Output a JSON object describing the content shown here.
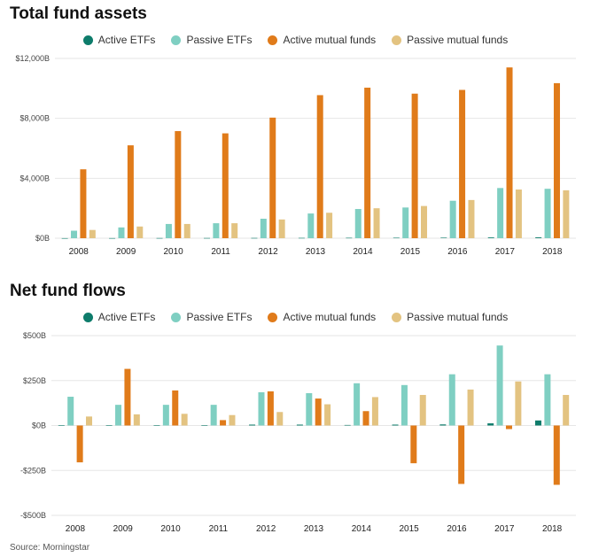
{
  "colors": {
    "active_etfs": "#0e7c6b",
    "passive_etfs": "#7fcfc2",
    "active_mutual": "#e07b1a",
    "passive_mutual": "#e3c381",
    "grid": "#e6e6e6",
    "axis_text": "#444444"
  },
  "source": "Source: Morningstar",
  "chart_data": [
    {
      "type": "bar",
      "title": "Total fund assets",
      "categories": [
        "2008",
        "2009",
        "2010",
        "2011",
        "2012",
        "2013",
        "2014",
        "2015",
        "2016",
        "2017",
        "2018"
      ],
      "ylim": [
        0,
        12000
      ],
      "yticks": [
        0,
        4000,
        8000,
        12000
      ],
      "ytick_labels": [
        "$0B",
        "$4,000B",
        "$8,000B",
        "$12,000B"
      ],
      "grid": true,
      "legend_position": "top",
      "series": [
        {
          "name": "Active ETFs",
          "values": [
            5,
            8,
            12,
            15,
            18,
            22,
            28,
            32,
            36,
            50,
            55
          ]
        },
        {
          "name": "Passive ETFs",
          "values": [
            500,
            720,
            950,
            1000,
            1300,
            1650,
            1950,
            2050,
            2500,
            3350,
            3300
          ]
        },
        {
          "name": "Active mutual funds",
          "values": [
            4600,
            6200,
            7150,
            7000,
            8050,
            9550,
            10050,
            9650,
            9900,
            11400,
            10350
          ]
        },
        {
          "name": "Passive mutual funds",
          "values": [
            550,
            780,
            950,
            1000,
            1250,
            1700,
            2000,
            2150,
            2550,
            3250,
            3200
          ]
        }
      ]
    },
    {
      "type": "bar",
      "title": "Net fund flows",
      "categories": [
        "2008",
        "2009",
        "2010",
        "2011",
        "2012",
        "2013",
        "2014",
        "2015",
        "2016",
        "2017",
        "2018"
      ],
      "ylim": [
        -500,
        500
      ],
      "yticks": [
        -500,
        -250,
        0,
        250,
        500
      ],
      "ytick_labels": [
        "-$500B",
        "-$250B",
        "$0B",
        "$250B",
        "$500B"
      ],
      "grid": true,
      "legend_position": "top",
      "series": [
        {
          "name": "Active ETFs",
          "values": [
            1,
            1,
            2,
            2,
            5,
            5,
            3,
            5,
            6,
            12,
            28
          ]
        },
        {
          "name": "Passive ETFs",
          "values": [
            160,
            115,
            115,
            115,
            185,
            180,
            235,
            225,
            285,
            445,
            285
          ]
        },
        {
          "name": "Active mutual funds",
          "values": [
            -205,
            315,
            195,
            30,
            190,
            150,
            80,
            -210,
            -325,
            -20,
            -330
          ]
        },
        {
          "name": "Passive mutual funds",
          "values": [
            50,
            62,
            65,
            58,
            75,
            118,
            158,
            170,
            200,
            245,
            170
          ]
        }
      ]
    }
  ]
}
